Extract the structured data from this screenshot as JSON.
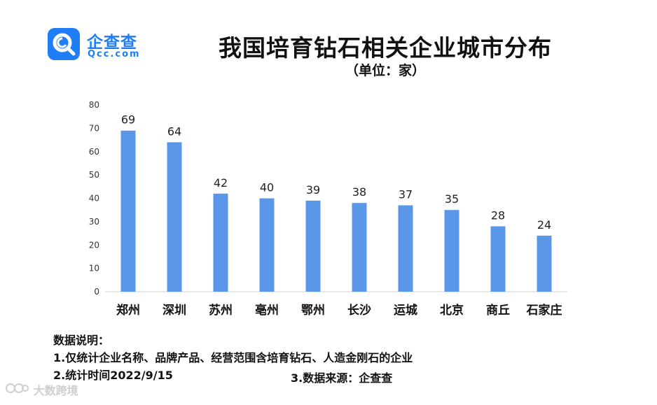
{
  "logo": {
    "icon": "qcc-magnifier-logo-icon",
    "name": "企查查",
    "domain": "Qcc.com",
    "brand_color": "#1f7ef5"
  },
  "bar_color": "#5b97e8",
  "chart_data": {
    "type": "bar",
    "title": "我国培育钻石相关企业城市分布",
    "subtitle": "（单位：家）",
    "categories": [
      "郑州",
      "深圳",
      "苏州",
      "亳州",
      "鄂州",
      "长沙",
      "运城",
      "北京",
      "商丘",
      "石家庄"
    ],
    "values": [
      69,
      64,
      42,
      40,
      39,
      38,
      37,
      35,
      28,
      24
    ],
    "yticks": [
      "0",
      "10",
      "20",
      "30",
      "40",
      "50",
      "60",
      "70",
      "80"
    ],
    "ylim": [
      0,
      80
    ],
    "grid": false,
    "legend": "none"
  },
  "notes": {
    "heading": "数据说明：",
    "line1": "1.仅统计企业名称、品牌产品、经营范围含培育钻石、人造金刚石的企业",
    "line2": "2.统计时间2022/9/15",
    "line3": "3.数据来源：企查查"
  },
  "watermark": {
    "icon": "dashu-watermark-icon",
    "text": "大数跨境"
  }
}
